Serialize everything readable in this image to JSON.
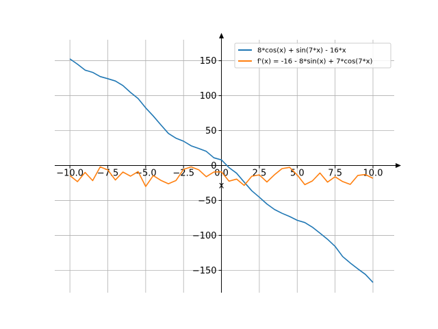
{
  "chart_data": {
    "type": "line",
    "title": "",
    "xlabel": "x",
    "ylabel": "",
    "xlim": [
      -11.0,
      11.4
    ],
    "ylim": [
      -182,
      180
    ],
    "grid": true,
    "legend_position": "top-right",
    "xticks": [
      -10.0,
      -7.5,
      -5.0,
      -2.5,
      0.0,
      2.5,
      5.0,
      7.5,
      10.0
    ],
    "xtick_labels": [
      "−10.0",
      "−7.5",
      "−5.0",
      "−2.5",
      "0.0",
      "2.5",
      "5.0",
      "7.5",
      "10.0"
    ],
    "yticks": [
      -150,
      -100,
      -50,
      0,
      50,
      100,
      150
    ],
    "ytick_labels": [
      "−150",
      "−100",
      "−50",
      "0",
      "50",
      "100",
      "150"
    ],
    "series": [
      {
        "name": "8*cos(x) + sin(7*x) - 16*x",
        "color": "#1f77b4",
        "x": [
          -10.0,
          -9.5,
          -9.0,
          -8.5,
          -8.0,
          -7.5,
          -7.0,
          -6.5,
          -6.0,
          -5.5,
          -5.0,
          -4.5,
          -4.0,
          -3.5,
          -3.0,
          -2.5,
          -2.0,
          -1.5,
          -1.0,
          -0.5,
          0.0,
          0.5,
          1.0,
          1.5,
          2.0,
          2.5,
          3.0,
          3.5,
          4.0,
          4.5,
          5.0,
          5.5,
          6.0,
          6.5,
          7.0,
          7.5,
          8.0,
          8.5,
          9.0,
          9.5,
          10.0
        ],
        "y": [
          152.6,
          145.1,
          136.5,
          133.3,
          127.3,
          124.3,
          120.9,
          114.5,
          104.6,
          95.8,
          82.5,
          70.9,
          58.3,
          45.9,
          39.1,
          34.8,
          28.2,
          24.4,
          20.3,
          11.1,
          8.0,
          -3.0,
          -11.0,
          -23.8,
          -36.1,
          -45.3,
          -55.1,
          -62.9,
          -68.4,
          -73.0,
          -78.4,
          -81.6,
          -88.2,
          -96.7,
          -105.6,
          -115.7,
          -130.3,
          -139.5,
          -148.0,
          -155.8,
          -167.4
        ]
      },
      {
        "name": "f'(x) = -16 - 8*sin(x) + 7*cos(7*x)",
        "color": "#ff7f0e",
        "x": [
          -10.0,
          -9.5,
          -9.0,
          -8.5,
          -8.0,
          -7.5,
          -7.0,
          -6.5,
          -6.0,
          -5.5,
          -5.0,
          -4.5,
          -4.0,
          -3.5,
          -3.0,
          -2.5,
          -2.0,
          -1.5,
          -1.0,
          -0.5,
          0.0,
          0.5,
          1.0,
          1.5,
          2.0,
          2.5,
          3.0,
          3.5,
          4.0,
          4.5,
          5.0,
          5.5,
          6.0,
          6.5,
          7.0,
          7.5,
          8.0,
          8.5,
          9.0,
          9.5,
          10.0
        ],
        "y": [
          -14.3,
          -23.1,
          -9.9,
          -21.6,
          -2.0,
          -6.3,
          -20.7,
          -9.3,
          -15.2,
          -8.7,
          -30.0,
          -14.4,
          -21.2,
          -26.1,
          -21.5,
          -5.5,
          -2.0,
          -6.1,
          -16.0,
          -9.2,
          -9.0,
          -22.4,
          -19.4,
          -28.5,
          -15.3,
          -13.4,
          -23.6,
          -13.2,
          -4.4,
          -2.7,
          -13.6,
          -27.4,
          -22.1,
          -10.7,
          -23.8,
          -16.1,
          -23.0,
          -27.0,
          -14.1,
          -12.9,
          -18.3
        ]
      }
    ]
  }
}
